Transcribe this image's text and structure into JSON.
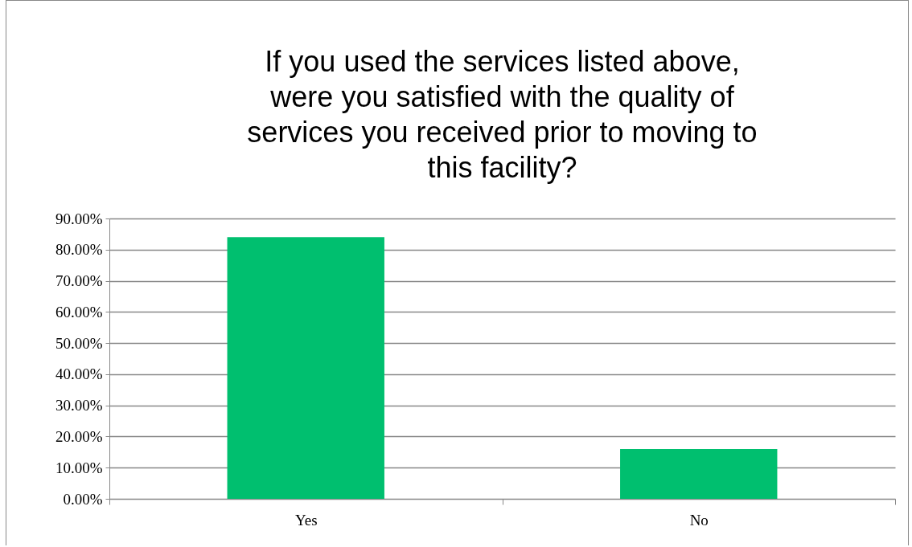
{
  "chart_data": {
    "type": "bar",
    "title": "If you used the services listed above, were you satisfied with the quality of services you received prior to moving to this facility?",
    "categories": [
      "Yes",
      "No"
    ],
    "values": [
      84,
      16
    ],
    "color": "#00bf6f",
    "ylim": [
      0,
      90
    ],
    "yticks": [
      {
        "value": 0,
        "label": "0.00%"
      },
      {
        "value": 10,
        "label": "10.00%"
      },
      {
        "value": 20,
        "label": "20.00%"
      },
      {
        "value": 30,
        "label": "30.00%"
      },
      {
        "value": 40,
        "label": "40.00%"
      },
      {
        "value": 50,
        "label": "50.00%"
      },
      {
        "value": 60,
        "label": "60.00%"
      },
      {
        "value": 70,
        "label": "70.00%"
      },
      {
        "value": 80,
        "label": "80.00%"
      },
      {
        "value": 90,
        "label": "90.00%"
      }
    ],
    "grid": "y"
  }
}
